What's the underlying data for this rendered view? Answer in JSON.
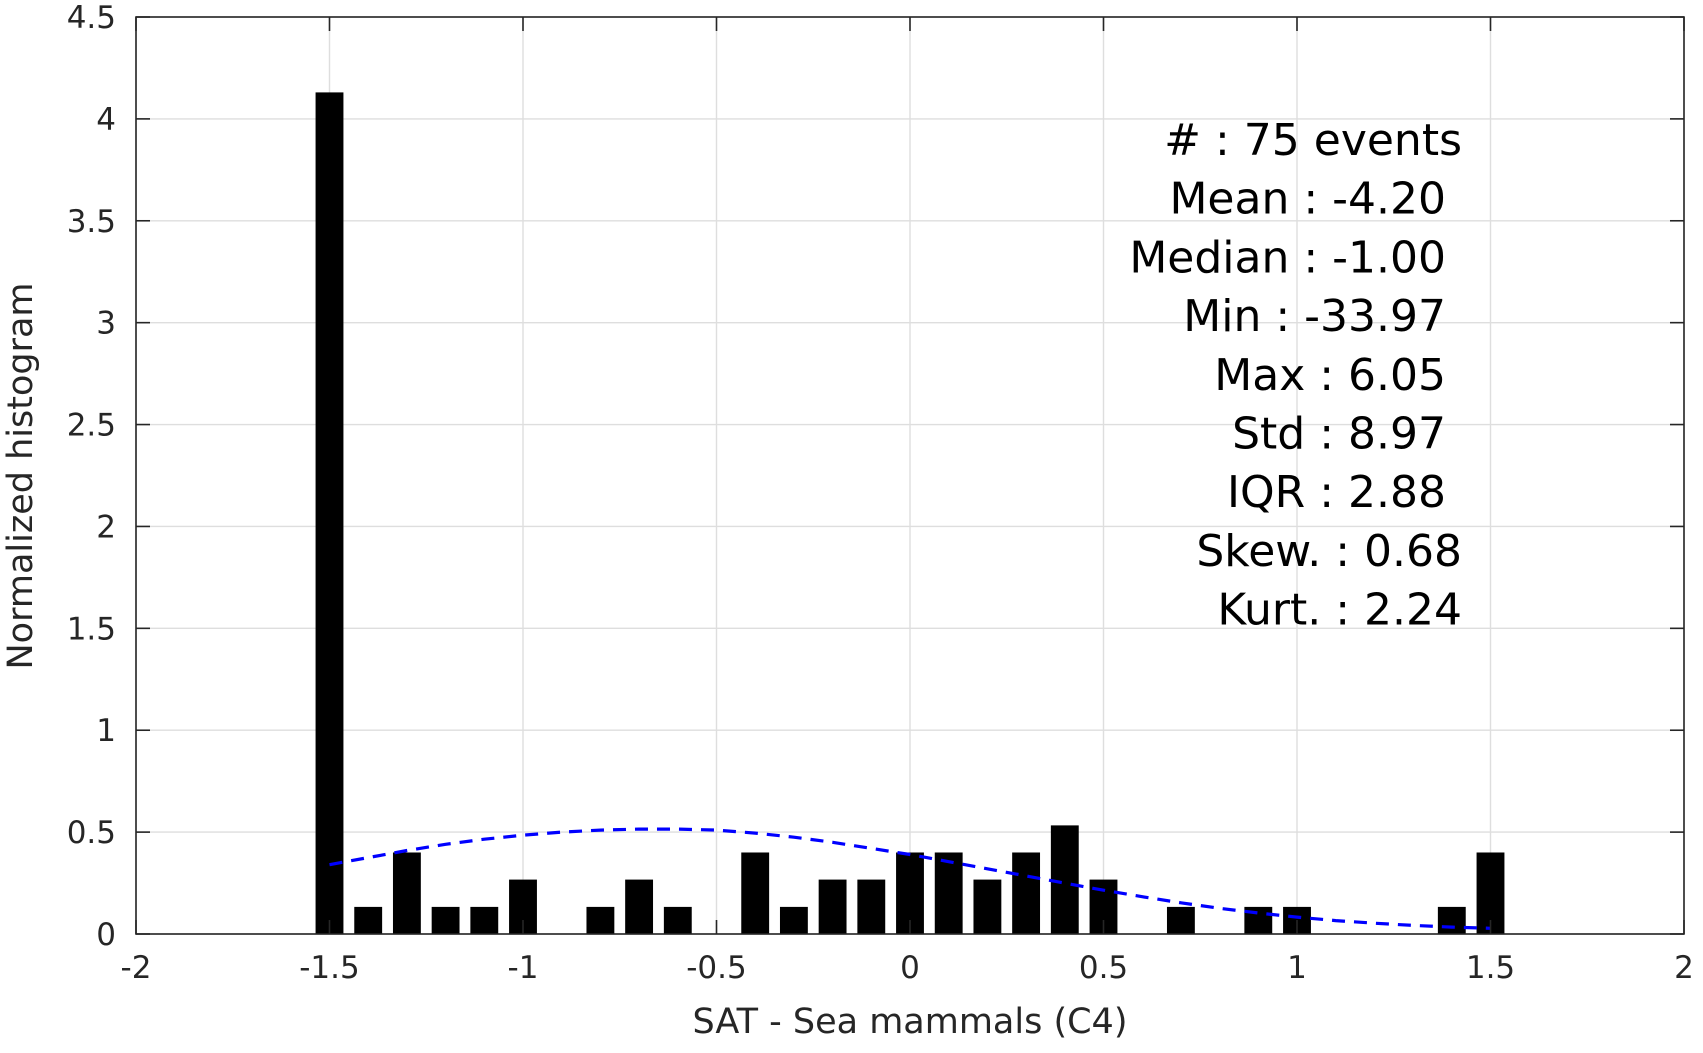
{
  "chart_data": {
    "type": "bar",
    "xlabel": "SAT - Sea mammals (C4)",
    "ylabel": "Normalized histogram",
    "xlim": [
      -2,
      2
    ],
    "ylim": [
      0,
      4.5
    ],
    "xticks": [
      "-2",
      "-1.5",
      "-1",
      "-0.5",
      "0",
      "0.5",
      "1",
      "1.5",
      "2"
    ],
    "yticks": [
      "0",
      "0.5",
      "1",
      "1.5",
      "2",
      "2.5",
      "3",
      "3.5",
      "4",
      "4.5"
    ],
    "grid": true,
    "bin_width": 0.1,
    "bar_color": "#000000",
    "fit_color": "#0000ff",
    "bins": [
      {
        "x": -1.5,
        "y": 4.13
      },
      {
        "x": -1.4,
        "y": 0.133
      },
      {
        "x": -1.3,
        "y": 0.4
      },
      {
        "x": -1.2,
        "y": 0.133
      },
      {
        "x": -1.1,
        "y": 0.133
      },
      {
        "x": -1.0,
        "y": 0.267
      },
      {
        "x": -0.8,
        "y": 0.133
      },
      {
        "x": -0.7,
        "y": 0.267
      },
      {
        "x": -0.6,
        "y": 0.133
      },
      {
        "x": -0.4,
        "y": 0.4
      },
      {
        "x": -0.3,
        "y": 0.133
      },
      {
        "x": -0.2,
        "y": 0.267
      },
      {
        "x": -0.1,
        "y": 0.267
      },
      {
        "x": 0.0,
        "y": 0.4
      },
      {
        "x": 0.1,
        "y": 0.4
      },
      {
        "x": 0.2,
        "y": 0.267
      },
      {
        "x": 0.3,
        "y": 0.4
      },
      {
        "x": 0.4,
        "y": 0.533
      },
      {
        "x": 0.5,
        "y": 0.267
      },
      {
        "x": 0.7,
        "y": 0.133
      },
      {
        "x": 0.9,
        "y": 0.133
      },
      {
        "x": 1.0,
        "y": 0.133
      },
      {
        "x": 1.4,
        "y": 0.133
      },
      {
        "x": 1.5,
        "y": 0.4
      }
    ],
    "fit_curve": {
      "style": "dashed",
      "x": [
        -1.5,
        -1.4,
        -1.3,
        -1.2,
        -1.1,
        -1.0,
        -0.9,
        -0.8,
        -0.7,
        -0.6,
        -0.5,
        -0.4,
        -0.3,
        -0.2,
        -0.1,
        0.0,
        0.1,
        0.2,
        0.3,
        0.4,
        0.5,
        0.6,
        0.7,
        0.8,
        0.9,
        1.0,
        1.1,
        1.2,
        1.3,
        1.4,
        1.5
      ],
      "y": [
        0.34,
        0.375,
        0.41,
        0.44,
        0.465,
        0.485,
        0.5,
        0.51,
        0.515,
        0.515,
        0.51,
        0.495,
        0.475,
        0.45,
        0.42,
        0.39,
        0.355,
        0.32,
        0.285,
        0.25,
        0.215,
        0.183,
        0.153,
        0.126,
        0.103,
        0.083,
        0.066,
        0.053,
        0.042,
        0.034,
        0.028
      ]
    },
    "stats_lines": [
      "#  : 75 events",
      "Mean : -4.20",
      "Median : -1.00",
      "Min : -33.97",
      "Max : 6.05",
      "Std : 8.97",
      "IQR : 2.88",
      "Skew. : 0.68",
      "Kurt. : 2.24"
    ]
  }
}
